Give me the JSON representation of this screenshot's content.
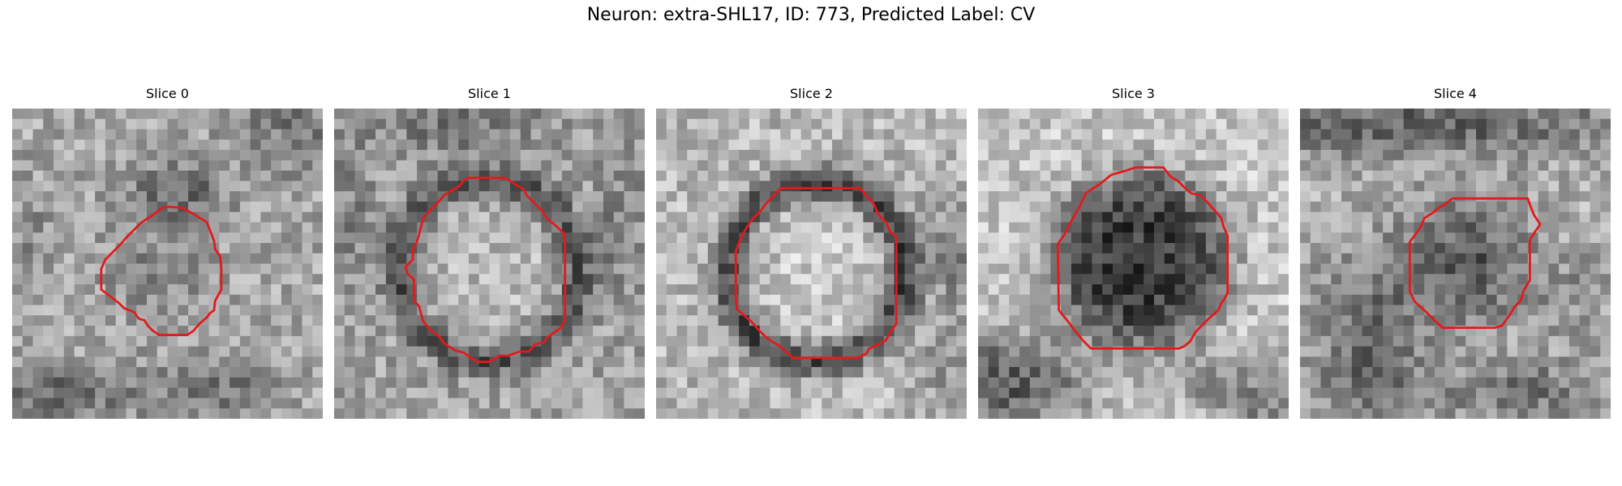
{
  "figure": {
    "title": "Neuron: extra-SHL17, ID: 773, Predicted Label: CV"
  },
  "panels": [
    {
      "title": "Slice 0",
      "seed": 11,
      "features": "s0"
    },
    {
      "title": "Slice 1",
      "seed": 23,
      "features": "s1"
    },
    {
      "title": "Slice 2",
      "seed": 37,
      "features": "s2"
    },
    {
      "title": "Slice 3",
      "seed": 53,
      "features": "s3"
    },
    {
      "title": "Slice 4",
      "seed": 71,
      "features": "s4"
    }
  ],
  "colors": {
    "contour": "#e31a1c"
  }
}
